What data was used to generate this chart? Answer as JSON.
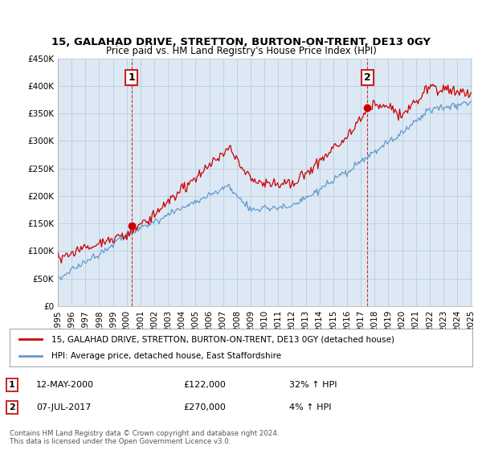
{
  "title": "15, GALAHAD DRIVE, STRETTON, BURTON-ON-TRENT, DE13 0GY",
  "subtitle": "Price paid vs. HM Land Registry's House Price Index (HPI)",
  "legend_line1": "15, GALAHAD DRIVE, STRETTON, BURTON-ON-TRENT, DE13 0GY (detached house)",
  "legend_line2": "HPI: Average price, detached house, East Staffordshire",
  "annotation1_label": "1",
  "annotation1_date": "12-MAY-2000",
  "annotation1_price": "£122,000",
  "annotation1_hpi": "32% ↑ HPI",
  "annotation2_label": "2",
  "annotation2_date": "07-JUL-2017",
  "annotation2_price": "£270,000",
  "annotation2_hpi": "4% ↑ HPI",
  "footer": "Contains HM Land Registry data © Crown copyright and database right 2024.\nThis data is licensed under the Open Government Licence v3.0.",
  "red_color": "#cc0000",
  "blue_color": "#6699cc",
  "bg_fill_color": "#dce9f5",
  "background_color": "#ffffff",
  "grid_color": "#bbccdd",
  "ylim": [
    0,
    450000
  ],
  "yticks": [
    0,
    50000,
    100000,
    150000,
    200000,
    250000,
    300000,
    350000,
    400000,
    450000
  ],
  "x_start_year": 1995,
  "x_end_year": 2025,
  "purchase1_year": 2000.37,
  "purchase1_price": 122000,
  "purchase2_year": 2017.52,
  "purchase2_price": 270000
}
